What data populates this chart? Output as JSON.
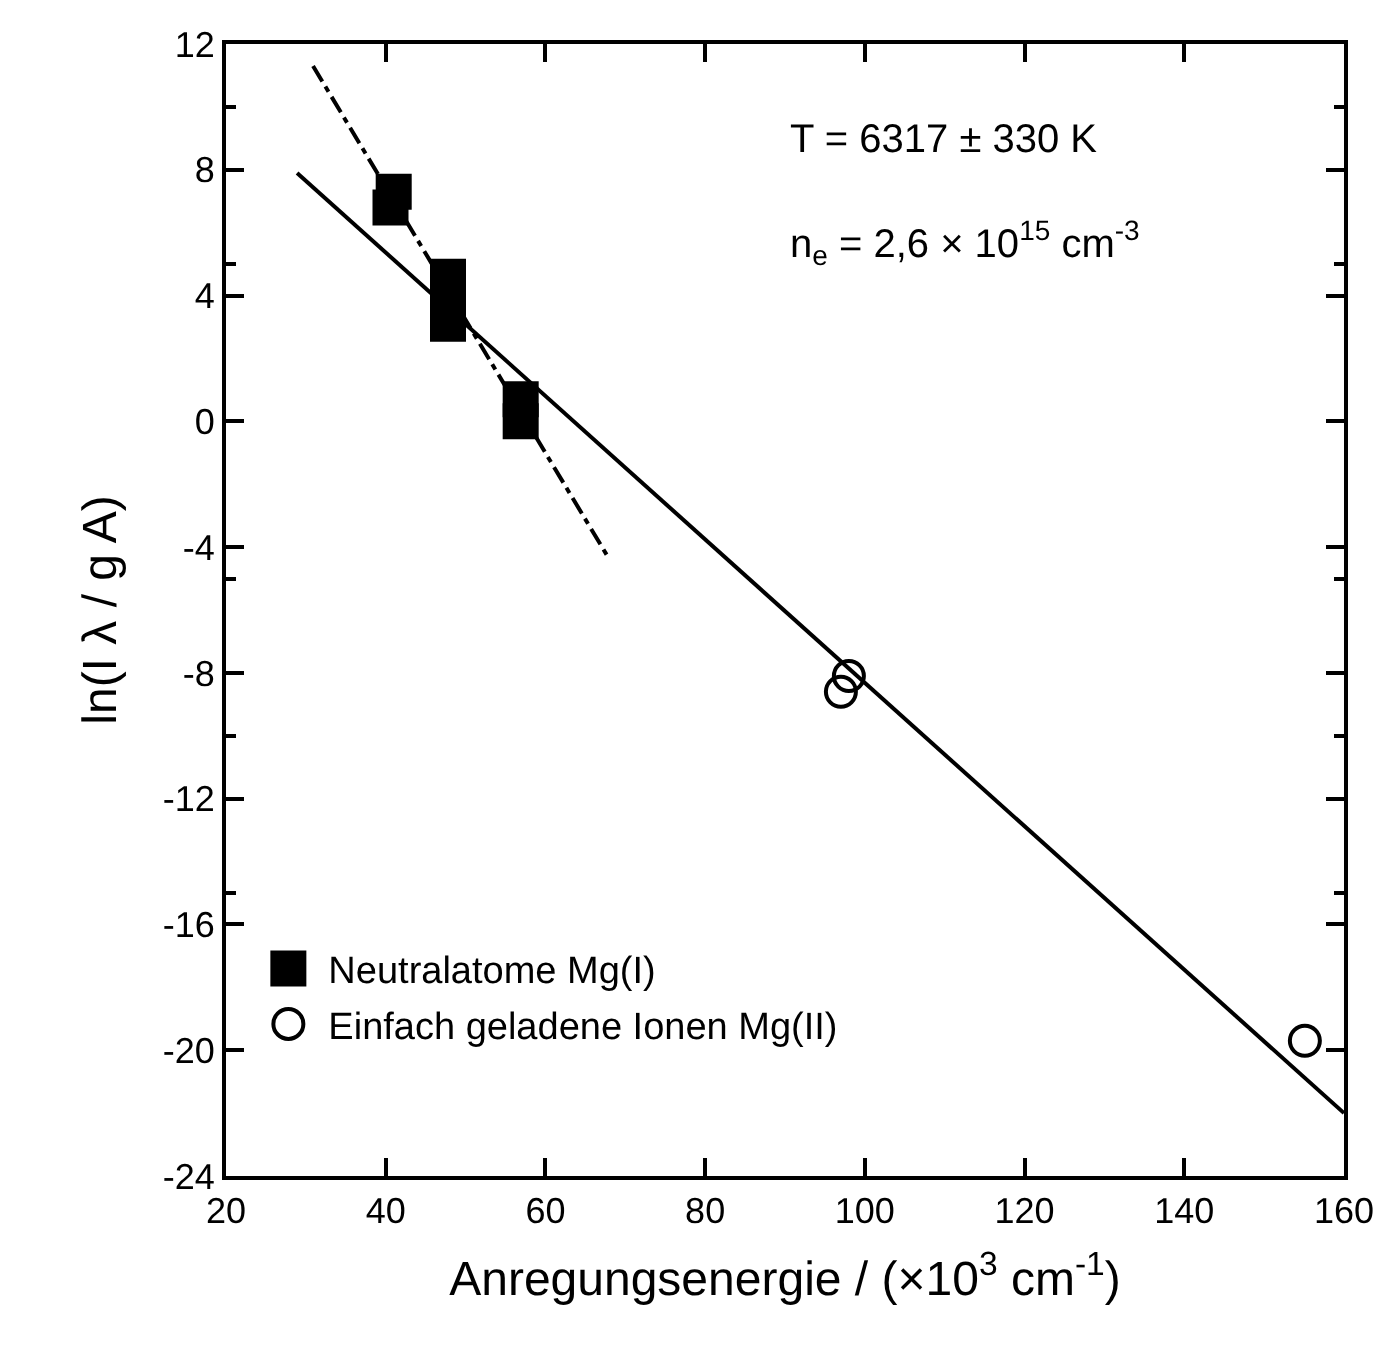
{
  "chart_data": {
    "type": "scatter",
    "xlabel": "Anregungsenergie / (×10$^{3}$ cm$^{-1}$)",
    "ylabel": "ln(I λ / g A)",
    "annotations": [
      "T = 6317 ± 330 K",
      "n$_{e}$ = 2,6 × 10$^{15}$ cm$^{-3}$"
    ],
    "series": [
      {
        "name": "Neutralatome Mg(I)",
        "color": "#000000",
        "marker": "square",
        "x": [
          41,
          40.6,
          47.8,
          47.8,
          47.8,
          56.9,
          56.9
        ],
        "values": [
          7.3,
          6.8,
          4.6,
          3.9,
          3.1,
          0.7,
          0.0
        ]
      },
      {
        "name": "Einfach geladene Ionen Mg(II)",
        "color": "#000000",
        "marker": "circle",
        "x": [
          98,
          97,
          155.1
        ],
        "values": [
          -8.1,
          -8.6,
          -19.7
        ]
      },
      {
        "type": "line",
        "color": "#000000",
        "line_style": "solid",
        "x": [
          28.9,
          160
        ],
        "values": [
          7.9,
          -22
        ]
      },
      {
        "type": "line",
        "color": "#000000",
        "line_style": "dashdot",
        "x": [
          30.9,
          67.8
        ],
        "values": [
          11.3,
          -4.3
        ]
      }
    ],
    "xlim": [
      20,
      160
    ],
    "xticks": [
      20,
      40,
      60,
      80,
      100,
      120,
      140,
      160
    ],
    "ylim": [
      -24,
      12
    ],
    "yticks": [
      -24,
      -20,
      -16,
      -12,
      -8,
      -4,
      0,
      4,
      8,
      12
    ],
    "grid": false,
    "legend": "bottom left"
  }
}
